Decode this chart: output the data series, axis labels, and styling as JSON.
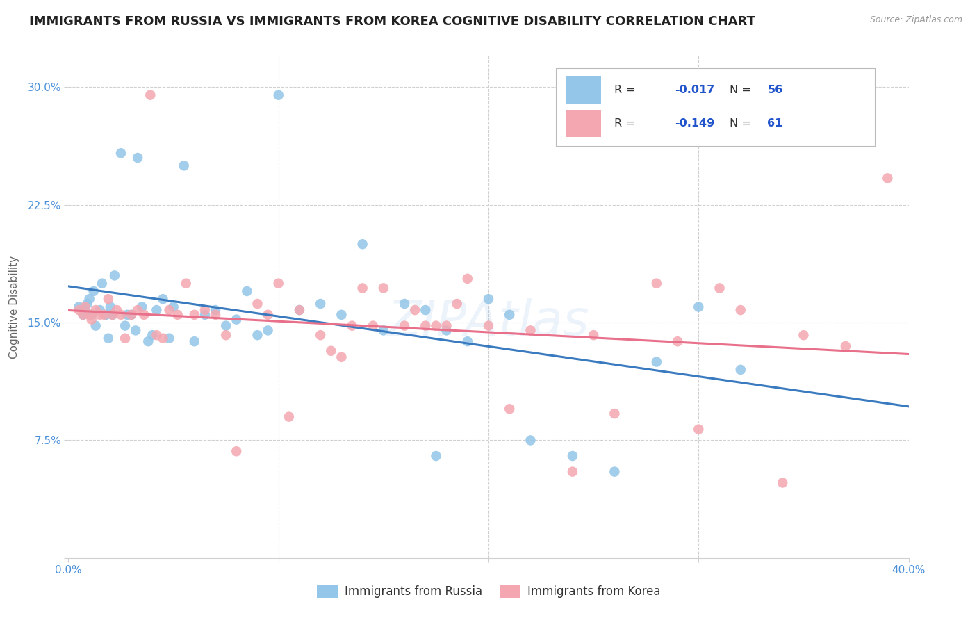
{
  "title": "IMMIGRANTS FROM RUSSIA VS IMMIGRANTS FROM KOREA COGNITIVE DISABILITY CORRELATION CHART",
  "source": "Source: ZipAtlas.com",
  "ylabel": "Cognitive Disability",
  "xlim": [
    0.0,
    0.4
  ],
  "ylim": [
    0.0,
    0.32
  ],
  "xticks": [
    0.0,
    0.1,
    0.2,
    0.3,
    0.4
  ],
  "xticklabels": [
    "0.0%",
    "",
    "",
    "",
    "40.0%"
  ],
  "yticks": [
    0.0,
    0.075,
    0.15,
    0.225,
    0.3
  ],
  "yticklabels": [
    "",
    "7.5%",
    "15.0%",
    "22.5%",
    "30.0%"
  ],
  "russia_color": "#93c6e8",
  "korea_color": "#f4a7b0",
  "russia_line_color": "#3a7abf",
  "korea_line_color": "#e8708a",
  "russia_R": -0.017,
  "russia_N": 56,
  "korea_R": -0.149,
  "korea_N": 61,
  "legend_label_russia": "Immigrants from Russia",
  "legend_label_korea": "Immigrants from Korea",
  "background_color": "#ffffff",
  "grid_color": "#d0d0d0",
  "title_fontsize": 13,
  "axis_label_fontsize": 11,
  "tick_fontsize": 11,
  "tick_color": "#4a90d9",
  "russia_scatter_x": [
    0.005,
    0.007,
    0.008,
    0.009,
    0.01,
    0.011,
    0.012,
    0.013,
    0.015,
    0.016,
    0.018,
    0.019,
    0.02,
    0.021,
    0.022,
    0.025,
    0.027,
    0.028,
    0.03,
    0.032,
    0.033,
    0.035,
    0.038,
    0.04,
    0.042,
    0.045,
    0.048,
    0.05,
    0.055,
    0.06,
    0.065,
    0.07,
    0.075,
    0.08,
    0.085,
    0.09,
    0.095,
    0.1,
    0.11,
    0.12,
    0.13,
    0.14,
    0.15,
    0.16,
    0.17,
    0.175,
    0.18,
    0.19,
    0.2,
    0.21,
    0.22,
    0.24,
    0.26,
    0.28,
    0.3,
    0.32
  ],
  "russia_scatter_y": [
    0.16,
    0.155,
    0.158,
    0.162,
    0.165,
    0.155,
    0.17,
    0.148,
    0.158,
    0.175,
    0.155,
    0.14,
    0.16,
    0.155,
    0.18,
    0.258,
    0.148,
    0.155,
    0.155,
    0.145,
    0.255,
    0.16,
    0.138,
    0.142,
    0.158,
    0.165,
    0.14,
    0.16,
    0.25,
    0.138,
    0.155,
    0.158,
    0.148,
    0.152,
    0.17,
    0.142,
    0.145,
    0.295,
    0.158,
    0.162,
    0.155,
    0.2,
    0.145,
    0.162,
    0.158,
    0.065,
    0.145,
    0.138,
    0.165,
    0.155,
    0.075,
    0.065,
    0.055,
    0.125,
    0.16,
    0.12
  ],
  "korea_scatter_x": [
    0.005,
    0.007,
    0.008,
    0.01,
    0.011,
    0.013,
    0.015,
    0.017,
    0.019,
    0.021,
    0.023,
    0.025,
    0.027,
    0.03,
    0.033,
    0.036,
    0.039,
    0.042,
    0.045,
    0.048,
    0.052,
    0.056,
    0.06,
    0.065,
    0.07,
    0.075,
    0.08,
    0.09,
    0.095,
    0.1,
    0.105,
    0.11,
    0.12,
    0.125,
    0.13,
    0.135,
    0.14,
    0.145,
    0.15,
    0.16,
    0.165,
    0.17,
    0.175,
    0.18,
    0.185,
    0.19,
    0.2,
    0.21,
    0.22,
    0.24,
    0.25,
    0.26,
    0.28,
    0.29,
    0.3,
    0.31,
    0.32,
    0.34,
    0.35,
    0.37,
    0.39
  ],
  "korea_scatter_y": [
    0.158,
    0.155,
    0.16,
    0.155,
    0.152,
    0.158,
    0.155,
    0.155,
    0.165,
    0.155,
    0.158,
    0.155,
    0.14,
    0.155,
    0.158,
    0.155,
    0.295,
    0.142,
    0.14,
    0.158,
    0.155,
    0.175,
    0.155,
    0.158,
    0.155,
    0.142,
    0.068,
    0.162,
    0.155,
    0.175,
    0.09,
    0.158,
    0.142,
    0.132,
    0.128,
    0.148,
    0.172,
    0.148,
    0.172,
    0.148,
    0.158,
    0.148,
    0.148,
    0.148,
    0.162,
    0.178,
    0.148,
    0.095,
    0.145,
    0.055,
    0.142,
    0.092,
    0.175,
    0.138,
    0.082,
    0.172,
    0.158,
    0.048,
    0.142,
    0.135,
    0.242
  ],
  "watermark": "ZIPAtlas",
  "watermark_color": "#4a90d9",
  "watermark_alpha": 0.1
}
